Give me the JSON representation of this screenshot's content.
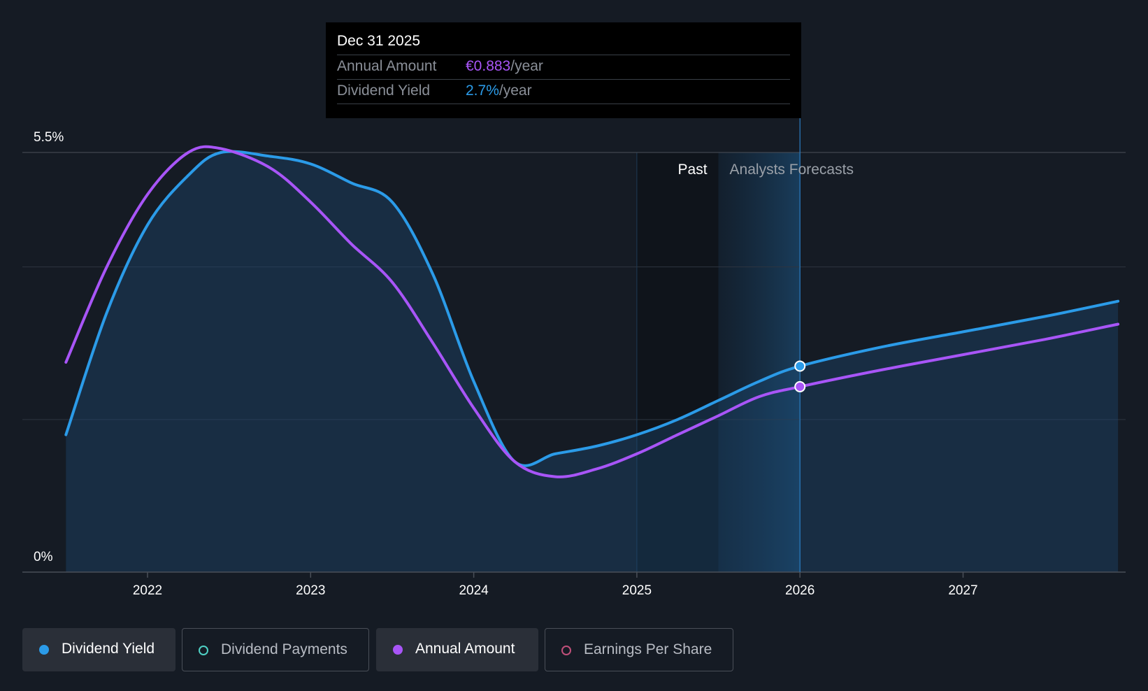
{
  "chart_data": {
    "type": "line",
    "y_tick_labels": [
      "5.5%",
      "0%"
    ],
    "ylim": [
      0,
      5.5
    ],
    "xlim": [
      2021.5,
      2027.95
    ],
    "x_tick_labels": [
      "2022",
      "2023",
      "2024",
      "2025",
      "2026",
      "2027"
    ],
    "x_ticks": [
      2022,
      2023,
      2024,
      2025,
      2026,
      2027
    ],
    "past_label": "Past",
    "forecast_label": "Analysts Forecasts",
    "past_start": 2025.0,
    "forecast_start": 2025.5,
    "marker_x": 2026.0,
    "grid": true,
    "series": [
      {
        "name": "Dividend Yield",
        "color": "#2b9be8",
        "filled": true,
        "points": [
          [
            2021.5,
            1.8
          ],
          [
            2021.75,
            3.4
          ],
          [
            2022.0,
            4.55
          ],
          [
            2022.25,
            5.2
          ],
          [
            2022.45,
            5.5
          ],
          [
            2022.75,
            5.45
          ],
          [
            2023.0,
            5.35
          ],
          [
            2023.25,
            5.1
          ],
          [
            2023.5,
            4.85
          ],
          [
            2023.75,
            3.9
          ],
          [
            2024.0,
            2.5
          ],
          [
            2024.25,
            1.45
          ],
          [
            2024.5,
            1.55
          ],
          [
            2024.75,
            1.65
          ],
          [
            2025.0,
            1.8
          ],
          [
            2025.25,
            2.0
          ],
          [
            2025.5,
            2.25
          ],
          [
            2025.75,
            2.5
          ],
          [
            2026.0,
            2.7
          ],
          [
            2026.5,
            2.95
          ],
          [
            2027.0,
            3.15
          ],
          [
            2027.5,
            3.35
          ],
          [
            2027.95,
            3.55
          ]
        ]
      },
      {
        "name": "Annual Amount",
        "color": "#a855f7",
        "filled": false,
        "points": [
          [
            2021.5,
            2.75
          ],
          [
            2021.75,
            4.0
          ],
          [
            2022.0,
            4.95
          ],
          [
            2022.25,
            5.5
          ],
          [
            2022.45,
            5.55
          ],
          [
            2022.75,
            5.3
          ],
          [
            2023.0,
            4.85
          ],
          [
            2023.25,
            4.3
          ],
          [
            2023.5,
            3.8
          ],
          [
            2023.75,
            3.0
          ],
          [
            2024.0,
            2.15
          ],
          [
            2024.25,
            1.45
          ],
          [
            2024.5,
            1.25
          ],
          [
            2024.75,
            1.35
          ],
          [
            2025.0,
            1.55
          ],
          [
            2025.25,
            1.8
          ],
          [
            2025.5,
            2.05
          ],
          [
            2025.75,
            2.3
          ],
          [
            2026.0,
            2.43
          ],
          [
            2026.5,
            2.65
          ],
          [
            2027.0,
            2.85
          ],
          [
            2027.5,
            3.05
          ],
          [
            2027.95,
            3.25
          ]
        ]
      }
    ]
  },
  "tooltip": {
    "date": "Dec 31 2025",
    "rows": [
      {
        "label": "Annual Amount",
        "value": "€0.883",
        "suffix": "/year"
      },
      {
        "label": "Dividend Yield",
        "value": "2.7%",
        "suffix": "/year"
      }
    ]
  },
  "legend": [
    {
      "label": "Dividend Yield",
      "color": "#2b9be8",
      "active": true
    },
    {
      "label": "Dividend Payments",
      "color": "#4fd1c5",
      "active": false
    },
    {
      "label": "Annual Amount",
      "color": "#a855f7",
      "active": true
    },
    {
      "label": "Earnings Per Share",
      "color": "#c0507a",
      "active": false
    }
  ]
}
